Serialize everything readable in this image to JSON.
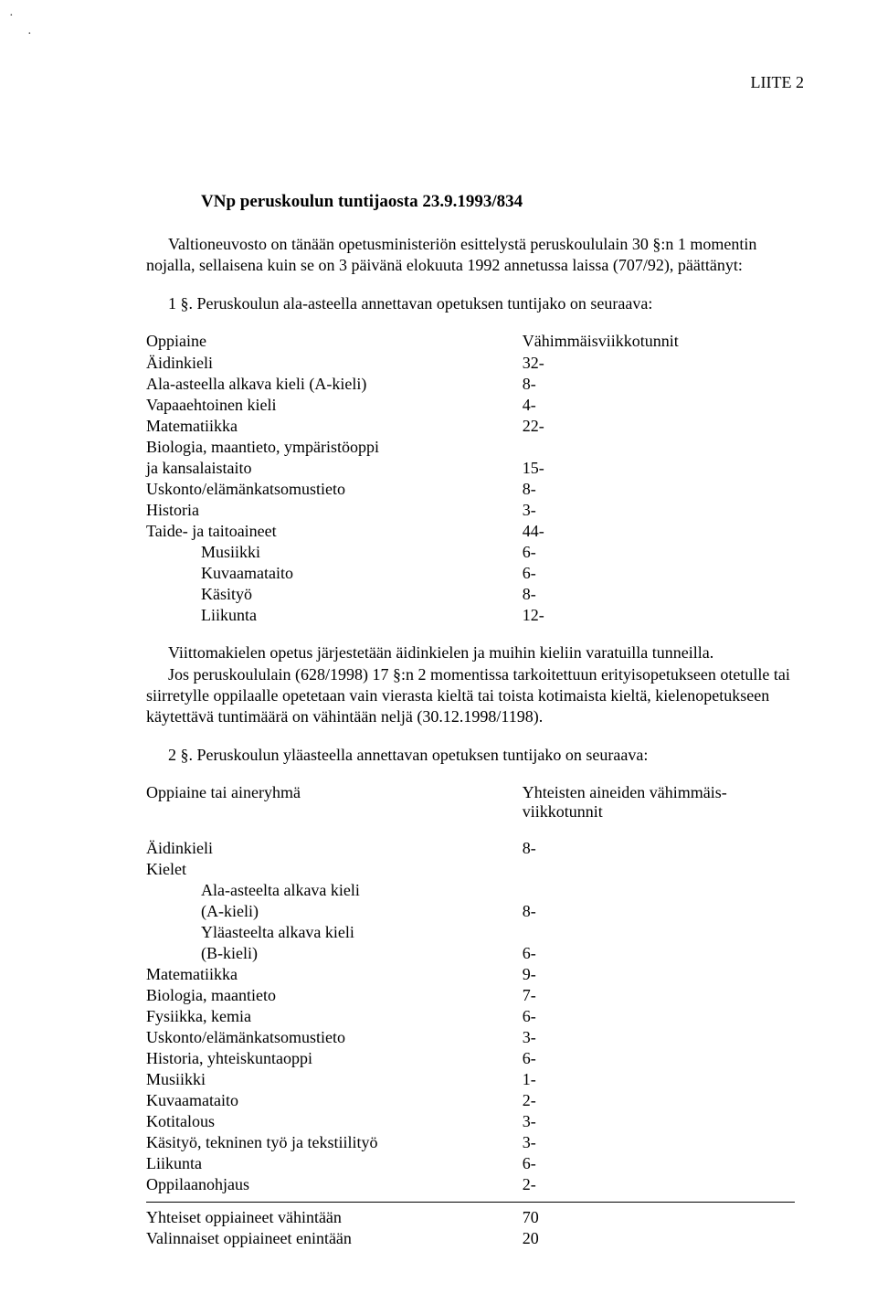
{
  "header": {
    "annex": "LIITE 2"
  },
  "title": "VNp peruskoulun tuntijaosta 23.9.1993/834",
  "intro": "Valtioneuvosto on tänään opetusministeriön esittelystä peruskoululain 30 §:n 1 momentin nojalla, sellaisena kuin se on 3 päivänä elokuuta 1992 annetussa laissa (707/92), päättänyt:",
  "section1_intro": "1 §. Peruskoulun ala-asteella annettavan opetuksen tuntijako on seuraava:",
  "table1": {
    "head_subject": "Oppiaine",
    "head_value": "Vähimmäisviikkotunnit",
    "rows": [
      {
        "subject": "Äidinkieli",
        "value": "32-"
      },
      {
        "subject": "Ala-asteella alkava kieli (A-kieli)",
        "value": "8-"
      },
      {
        "subject": "Vapaaehtoinen kieli",
        "value": "4-"
      },
      {
        "subject": "Matematiikka",
        "value": "22-"
      },
      {
        "subject": "Biologia, maantieto, ympäristöoppi",
        "value": ""
      },
      {
        "subject": "ja kansalaistaito",
        "value": "15-"
      },
      {
        "subject": "Uskonto/elämänkatsomustieto",
        "value": "8-"
      },
      {
        "subject": "Historia",
        "value": "3-"
      },
      {
        "subject": "Taide- ja taitoaineet",
        "value": "44-"
      },
      {
        "subject": "Musiikki",
        "value": "6-",
        "indent": true
      },
      {
        "subject": "Kuvaamataito",
        "value": "6-",
        "indent": true
      },
      {
        "subject": "Käsityö",
        "value": "8-",
        "indent": true
      },
      {
        "subject": "Liikunta",
        "value": "12-",
        "indent": true
      }
    ]
  },
  "mid_para1": "Viittomakielen opetus järjestetään äidinkielen ja muihin kieliin varatuilla tunneilla.",
  "mid_para2": "Jos peruskoululain (628/1998) 17 §:n 2 momentissa tarkoitettuun erityisopetukseen otetulle tai siirretylle oppilaalle opetetaan vain vierasta kieltä tai toista kotimaista kieltä,   kielenopetukseen käytettävä tuntimäärä on vähintään neljä (30.12.1998/1198).",
  "section2_intro": "2 §. Peruskoulun yläasteella annettavan opetuksen tuntijako on seuraava:",
  "table2": {
    "head_subject": "Oppiaine tai aineryhmä",
    "head_value_l1": "Yhteisten aineiden vähimmäis-",
    "head_value_l2": "viikkotunnit",
    "rows": [
      {
        "subject": "Äidinkieli",
        "value": "8-"
      },
      {
        "subject": "Kielet",
        "value": ""
      },
      {
        "subject": "Ala-asteelta alkava kieli",
        "value": "",
        "indent": true
      },
      {
        "subject": "(A-kieli)",
        "value": "8-",
        "indent": true
      },
      {
        "subject": "Yläasteelta alkava kieli",
        "value": "",
        "indent": true
      },
      {
        "subject": "(B-kieli)",
        "value": "6-",
        "indent": true
      },
      {
        "subject": "Matematiikka",
        "value": "9-"
      },
      {
        "subject": "Biologia, maantieto",
        "value": "7-"
      },
      {
        "subject": "Fysiikka, kemia",
        "value": "6-"
      },
      {
        "subject": "Uskonto/elämänkatsomustieto",
        "value": "3-"
      },
      {
        "subject": "Historia, yhteiskuntaoppi",
        "value": "6-"
      },
      {
        "subject": "Musiikki",
        "value": "1-"
      },
      {
        "subject": "Kuvaamataito",
        "value": "2-"
      },
      {
        "subject": "Kotitalous",
        "value": "3-"
      },
      {
        "subject": "Käsityö, tekninen työ ja tekstiilityö",
        "value": "3-"
      },
      {
        "subject": "Liikunta",
        "value": "6-"
      },
      {
        "subject": "Oppilaanohjaus",
        "value": "2-"
      }
    ],
    "totals": [
      {
        "subject": "Yhteiset oppiaineet vähintään",
        "value": "70"
      },
      {
        "subject": "Valinnaiset oppiaineet enintään",
        "value": "20"
      }
    ]
  }
}
